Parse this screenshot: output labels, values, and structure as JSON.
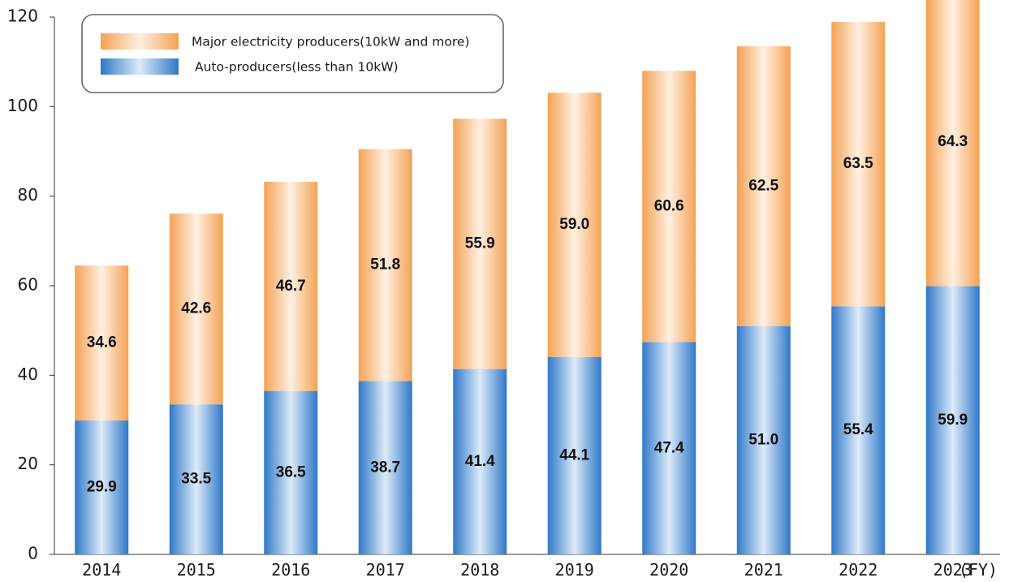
{
  "chart_data": {
    "type": "bar",
    "stacked": true,
    "categories": [
      "2014",
      "2015",
      "2016",
      "2017",
      "2018",
      "2019",
      "2020",
      "2021",
      "2022",
      "2023"
    ],
    "x_unit_label": "(FY)",
    "series": [
      {
        "name": "Auto-producers(less than 10kW)",
        "values": [
          29.9,
          33.5,
          36.5,
          38.7,
          41.4,
          44.1,
          47.4,
          51.0,
          55.4,
          59.9
        ],
        "labels": [
          "29.9",
          "33.5",
          "36.5",
          "38.7",
          "41.4",
          "44.1",
          "47.4",
          "51.0",
          "55.4",
          "59.9"
        ],
        "color": "#2f78c8"
      },
      {
        "name": "Major electricity producers(10kW and more)",
        "values": [
          34.6,
          42.6,
          46.7,
          51.8,
          55.9,
          59.0,
          60.6,
          62.5,
          63.5,
          64.3
        ],
        "labels": [
          "34.6",
          "42.6",
          "46.7",
          "51.8",
          "55.9",
          "59.0",
          "60.6",
          "62.5",
          "63.5",
          "64.3"
        ],
        "color": "#f4a255"
      }
    ],
    "ylim": [
      0,
      120
    ],
    "yticks": [
      0,
      20,
      40,
      60,
      80,
      100,
      120
    ],
    "legend_position": "top-left",
    "grid": false
  }
}
